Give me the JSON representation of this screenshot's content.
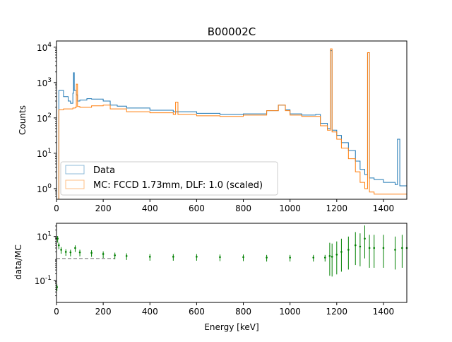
{
  "chart_data": [
    {
      "panel": "top",
      "type": "line",
      "title": "B00002C",
      "xlabel": "",
      "ylabel": "Counts",
      "xlim": [
        0,
        1500
      ],
      "ylim": [
        0.5,
        15000
      ],
      "yscale": "log",
      "xticks": [
        0,
        200,
        400,
        600,
        800,
        1000,
        1200,
        1400
      ],
      "yticks": [
        {
          "value": 1,
          "label": "10^0"
        },
        {
          "value": 10,
          "label": "10^1"
        },
        {
          "value": 100,
          "label": "10^2"
        },
        {
          "value": 1000,
          "label": "10^3"
        },
        {
          "value": 10000,
          "label": "10^4"
        }
      ],
      "legend_position": "lower-left",
      "series": [
        {
          "name": "Data",
          "color": "#1f77b4",
          "style": "step",
          "x": [
            0,
            10,
            30,
            50,
            60,
            70,
            73,
            76,
            85,
            90,
            100,
            130,
            150,
            200,
            230,
            260,
            300,
            400,
            500,
            600,
            700,
            800,
            900,
            950,
            980,
            1000,
            1050,
            1110,
            1130,
            1160,
            1173,
            1180,
            1200,
            1220,
            1250,
            1280,
            1300,
            1320,
            1332,
            1340,
            1360,
            1400,
            1450,
            1460,
            1470,
            1500
          ],
          "y": [
            0.5,
            600,
            400,
            300,
            260,
            500,
            1900,
            600,
            450,
            300,
            320,
            350,
            340,
            300,
            230,
            215,
            190,
            165,
            150,
            135,
            125,
            130,
            160,
            230,
            170,
            130,
            120,
            125,
            70,
            50,
            8000,
            45,
            32,
            20,
            12,
            6,
            3.5,
            2.5,
            7000,
            2,
            1.8,
            1.5,
            1.3,
            25,
            1.2,
            1.0
          ]
        },
        {
          "name": "MC: FCCD 1.73mm, DLF: 1.0 (scaled)",
          "color": "#ff7f0e",
          "style": "step",
          "x": [
            0,
            10,
            30,
            50,
            70,
            80,
            85,
            90,
            100,
            150,
            200,
            230,
            300,
            400,
            500,
            510,
            520,
            600,
            700,
            800,
            900,
            950,
            980,
            1000,
            1050,
            1110,
            1130,
            1160,
            1173,
            1180,
            1200,
            1220,
            1250,
            1280,
            1300,
            1320,
            1332,
            1340,
            1360,
            1400,
            1450,
            1500
          ],
          "y": [
            0.5,
            170,
            180,
            180,
            190,
            200,
            900,
            210,
            200,
            220,
            230,
            180,
            150,
            140,
            125,
            280,
            125,
            115,
            110,
            120,
            160,
            230,
            160,
            120,
            110,
            110,
            60,
            45,
            9000,
            40,
            25,
            14,
            7,
            3,
            1.5,
            1.0,
            7000,
            0.8,
            0.7,
            0.7,
            0.7,
            0.6
          ]
        }
      ]
    },
    {
      "panel": "bottom",
      "type": "scatter",
      "title": "",
      "xlabel": "Energy [keV]",
      "ylabel": "data/MC",
      "xlim": [
        0,
        1500
      ],
      "ylim": [
        0.01,
        40
      ],
      "yscale": "log",
      "xticks": [
        0,
        200,
        400,
        600,
        800,
        1000,
        1200,
        1400
      ],
      "yticks": [
        {
          "value": 0.1,
          "label": "10^-1"
        },
        {
          "value": 10,
          "label": "10^1"
        }
      ],
      "reference_line": {
        "y": 1.0,
        "color": "#808080",
        "style": "dashed"
      },
      "series": [
        {
          "name": "",
          "color": "#008000",
          "style": "errorbar-markers",
          "x": [
            2,
            5,
            10,
            20,
            40,
            60,
            80,
            100,
            150,
            200,
            250,
            300,
            400,
            500,
            600,
            700,
            800,
            900,
            1000,
            1100,
            1150,
            1170,
            1180,
            1200,
            1220,
            1250,
            1280,
            1300,
            1320,
            1340,
            1360,
            1400,
            1450,
            1480,
            1500
          ],
          "y": [
            0.05,
            8,
            4,
            2.5,
            2.0,
            1.9,
            3.0,
            1.9,
            1.8,
            1.6,
            1.4,
            1.3,
            1.2,
            1.2,
            1.2,
            1.15,
            1.15,
            1.1,
            1.1,
            1.1,
            1.1,
            1.3,
            1.2,
            1.5,
            2.0,
            2.5,
            4.0,
            3.5,
            8.0,
            3.0,
            3.0,
            3.0,
            2.5,
            3.0,
            3.0
          ]
        }
      ]
    }
  ]
}
